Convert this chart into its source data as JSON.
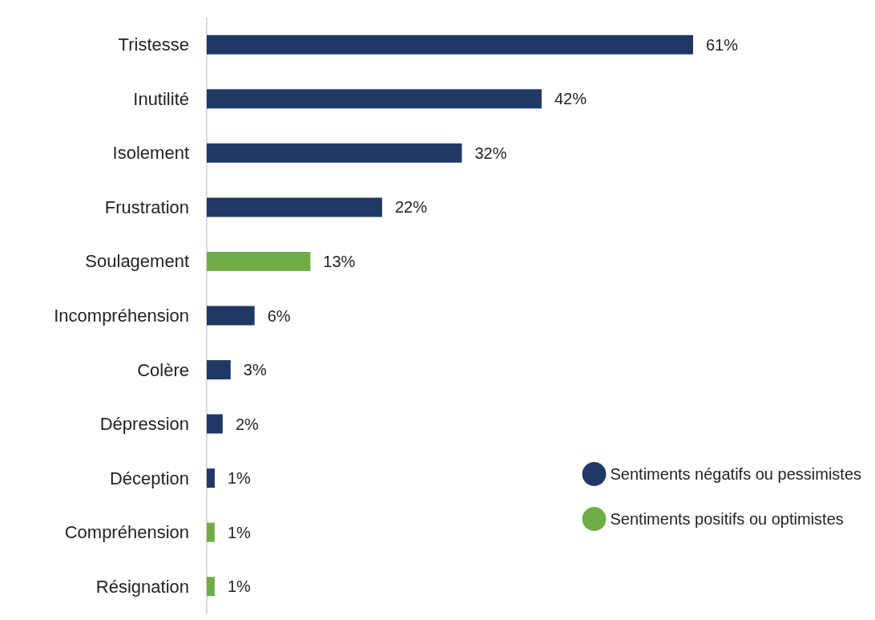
{
  "chart_data": {
    "type": "bar",
    "orientation": "horizontal",
    "stacked": true,
    "categories": [
      "Tristesse",
      "Inutilité",
      "Isolement",
      "Frustration",
      "Soulagement",
      "Incompréhension",
      "Colère",
      "Dépression",
      "Déception",
      "Compréhension",
      "Résignation"
    ],
    "series": [
      {
        "name": "Sentiments négatifs ou pessimistes",
        "color": "#203864",
        "values": [
          61,
          42,
          32,
          22,
          null,
          6,
          3,
          2,
          1,
          null,
          null
        ],
        "value_labels": [
          "61%",
          "42%",
          "32%",
          "22%",
          null,
          "6%",
          "3%",
          "2%",
          "1%",
          null,
          null
        ]
      },
      {
        "name": "Sentiments positifs ou optimistes",
        "color": "#70ad47",
        "values": [
          null,
          null,
          null,
          null,
          13,
          null,
          null,
          null,
          null,
          1,
          1
        ],
        "value_labels": [
          null,
          null,
          null,
          null,
          "13%",
          null,
          null,
          null,
          null,
          "1%",
          "1%"
        ]
      }
    ],
    "legend": "bottom right"
  }
}
